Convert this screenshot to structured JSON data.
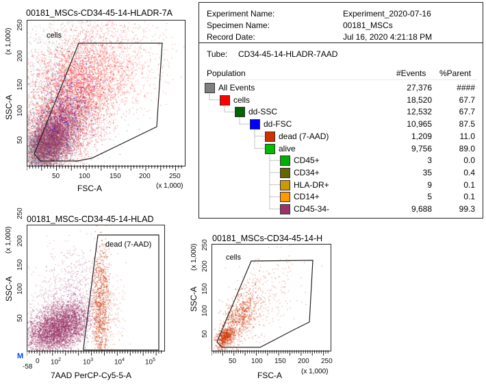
{
  "info": {
    "experiment_label": "Experiment Name:",
    "experiment_value": "Experiment_2020-07-16",
    "specimen_label": "Specimen Name:",
    "specimen_value": "00181_MSCs",
    "date_label": "Record Date:",
    "date_value": "Jul 16, 2020 4:21:18 PM",
    "tube_label": "Tube:",
    "tube_value": "CD34-45-14-HLADR-7AAD",
    "col_population": "Population",
    "col_events": "#Events",
    "col_parent": "%Parent",
    "populations": [
      {
        "name": "All Events",
        "level": 0,
        "events": "27,376",
        "parent": "####",
        "color": "#808080"
      },
      {
        "name": "cells",
        "level": 1,
        "events": "18,520",
        "parent": "67.7",
        "color": "#ff0000"
      },
      {
        "name": "dd-SSC",
        "level": 2,
        "events": "12,532",
        "parent": "67.7",
        "color": "#006400"
      },
      {
        "name": "dd-FSC",
        "level": 3,
        "events": "10,965",
        "parent": "87.5",
        "color": "#0000ff"
      },
      {
        "name": "dead (7-AAD)",
        "level": 4,
        "events": "1,209",
        "parent": "11.0",
        "color": "#cc3300"
      },
      {
        "name": "alive",
        "level": 4,
        "events": "9,756",
        "parent": "89.0",
        "color": "#00bb00"
      },
      {
        "name": "CD45+",
        "level": 5,
        "events": "3",
        "parent": "0.0",
        "color": "#00b000"
      },
      {
        "name": "CD34+",
        "level": 5,
        "events": "35",
        "parent": "0.4",
        "color": "#666600"
      },
      {
        "name": "HLA-DR+",
        "level": 5,
        "events": "9",
        "parent": "0.1",
        "color": "#cc9900"
      },
      {
        "name": "CD14+",
        "level": 5,
        "events": "5",
        "parent": "0.1",
        "color": "#ff9900"
      },
      {
        "name": "CD45-34-",
        "level": 5,
        "events": "9,688",
        "parent": "99.3",
        "color": "#993366"
      }
    ]
  },
  "plots": [
    {
      "title": "00181_MSCs-CD34-45-14-HLADR-7A",
      "xlabel": "FSC-A",
      "ylabel": "SSC-A",
      "xscale": "(x 1,000)",
      "yscale": "(x 1,000)",
      "xticks": [
        "50",
        "100",
        "150",
        "200",
        "250"
      ],
      "yticks": [
        "50",
        "100",
        "150",
        "200",
        "250"
      ],
      "gate": "cells"
    },
    {
      "title": "00181_MSCs-CD34-45-14-HLAD",
      "xlabel": "7AAD PerCP-Cy5-5-A",
      "ylabel": "SSC-A",
      "yscale": "(x 1,000)",
      "xticks": [
        "-58",
        "0",
        "10",
        "10",
        "10",
        "10"
      ],
      "xexp": [
        "",
        "",
        "2",
        "3",
        "4",
        "5"
      ],
      "yticks": [
        "50",
        "100",
        "150",
        "200",
        "250"
      ],
      "gate": "dead (7-AAD)",
      "marker": "M"
    },
    {
      "title": "00181_MSCs-CD34-45-14-H",
      "xlabel": "FSC-A",
      "ylabel": "SSC-A",
      "xscale": "(x 1,000)",
      "yscale": "(x 1,000)",
      "xticks": [
        "50",
        "100",
        "150",
        "200",
        "250"
      ],
      "yticks": [
        "50",
        "100",
        "150",
        "200",
        "250"
      ],
      "gate": "cells"
    }
  ]
}
